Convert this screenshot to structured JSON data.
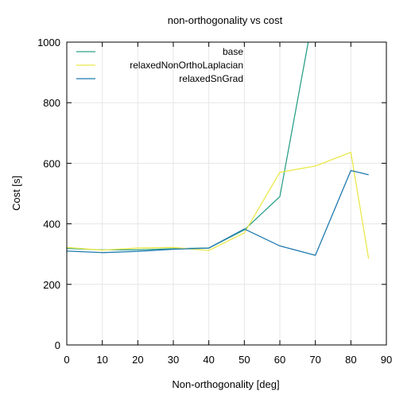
{
  "chart_data": {
    "type": "line",
    "title": "non-orthogonality vs cost",
    "xlabel": "Non-orthogonality [deg]",
    "ylabel": "Cost [s]",
    "xlim": [
      0,
      90
    ],
    "ylim": [
      0,
      1000
    ],
    "xticks": [
      0,
      10,
      20,
      30,
      40,
      50,
      60,
      70,
      80,
      90
    ],
    "yticks": [
      0,
      200,
      400,
      600,
      800,
      1000
    ],
    "grid": true,
    "legend_position": "top-left",
    "series": [
      {
        "name": "base",
        "color": "#2ca089",
        "points": [
          [
            0,
            319
          ],
          [
            10,
            314
          ],
          [
            20,
            314
          ],
          [
            30,
            318
          ],
          [
            40,
            320
          ],
          [
            50,
            380
          ],
          [
            60,
            490
          ],
          [
            68,
            1000
          ]
        ]
      },
      {
        "name": "relaxedNonOrthoLaplacian",
        "color": "#eae84a",
        "points": [
          [
            0,
            322
          ],
          [
            10,
            313
          ],
          [
            20,
            320
          ],
          [
            30,
            322
          ],
          [
            40,
            312
          ],
          [
            50,
            370
          ],
          [
            60,
            570
          ],
          [
            70,
            591
          ],
          [
            80,
            636
          ],
          [
            85,
            285
          ]
        ]
      },
      {
        "name": "relaxedSnGrad",
        "color": "#1f7ab0",
        "points": [
          [
            0,
            310
          ],
          [
            10,
            305
          ],
          [
            20,
            309
          ],
          [
            30,
            316
          ],
          [
            40,
            320
          ],
          [
            50,
            383
          ],
          [
            60,
            327
          ],
          [
            70,
            296
          ],
          [
            80,
            576
          ],
          [
            85,
            562
          ]
        ]
      }
    ]
  }
}
